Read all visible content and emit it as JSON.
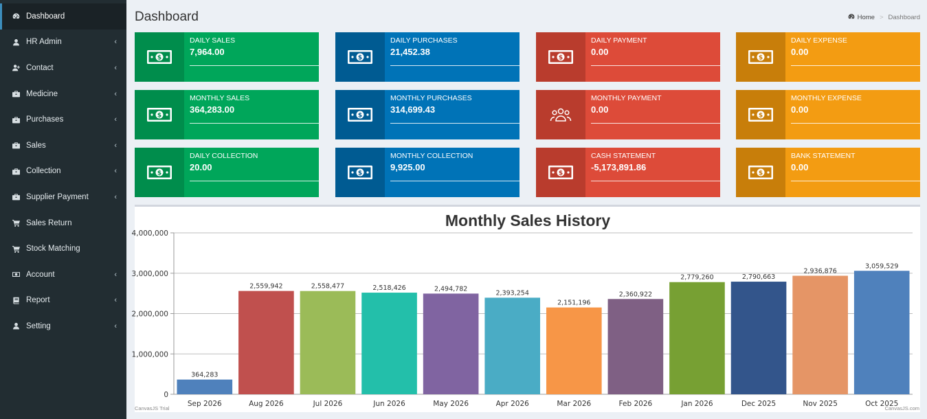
{
  "sidebar": {
    "items": [
      {
        "label": "Dashboard",
        "icon": "dashboard-icon",
        "active": true,
        "chevron": false
      },
      {
        "label": "HR Admin",
        "icon": "user-icon",
        "chevron": true
      },
      {
        "label": "Contact",
        "icon": "user-plus-icon",
        "chevron": true
      },
      {
        "label": "Medicine",
        "icon": "briefcase-icon",
        "chevron": true
      },
      {
        "label": "Purchases",
        "icon": "briefcase-icon",
        "chevron": true
      },
      {
        "label": "Sales",
        "icon": "briefcase-icon",
        "chevron": true
      },
      {
        "label": "Collection",
        "icon": "briefcase-icon",
        "chevron": true
      },
      {
        "label": "Supplier Payment",
        "icon": "briefcase-icon",
        "chevron": true
      },
      {
        "label": "Sales Return",
        "icon": "cart-icon",
        "chevron": false
      },
      {
        "label": "Stock Matching",
        "icon": "cart-icon",
        "chevron": false
      },
      {
        "label": "Account",
        "icon": "money-icon",
        "chevron": true
      },
      {
        "label": "Report",
        "icon": "book-icon",
        "chevron": true
      },
      {
        "label": "Setting",
        "icon": "user-icon",
        "chevron": true
      }
    ]
  },
  "header": {
    "title": "Dashboard",
    "breadcrumb": {
      "home": "Home",
      "current": "Dashboard"
    }
  },
  "boxes": [
    {
      "label": "DAILY SALES",
      "value": "7,964.00",
      "color": "green",
      "icon": "money-bill-icon"
    },
    {
      "label": "DAILY PURCHASES",
      "value": "21,452.38",
      "color": "blue",
      "icon": "money-bill-icon"
    },
    {
      "label": "DAILY PAYMENT",
      "value": "0.00",
      "color": "red",
      "icon": "money-bill-icon"
    },
    {
      "label": "DAILY EXPENSE",
      "value": "0.00",
      "color": "orange",
      "icon": "money-bill-icon"
    },
    {
      "label": "MONTHLY SALES",
      "value": "364,283.00",
      "color": "green",
      "icon": "money-bill-icon"
    },
    {
      "label": "MONTHLY PURCHASES",
      "value": "314,699.43",
      "color": "blue",
      "icon": "money-bill-icon"
    },
    {
      "label": "MONTHLY PAYMENT",
      "value": "0.00",
      "color": "red",
      "icon": "users-icon"
    },
    {
      "label": "MONTHLY EXPENSE",
      "value": "0.00",
      "color": "orange",
      "icon": "money-bill-icon"
    },
    {
      "label": "DAILY COLLECTION",
      "value": "20.00",
      "color": "green",
      "icon": "money-bill-icon"
    },
    {
      "label": "MONTHLY COLLECTION",
      "value": "9,925.00",
      "color": "blue",
      "icon": "money-bill-icon"
    },
    {
      "label": "CASH STATEMENT",
      "value": "-5,173,891.86",
      "color": "red",
      "icon": "money-bill-icon"
    },
    {
      "label": "BANK STATEMENT",
      "value": "0.00",
      "color": "orange",
      "icon": "money-bill-icon"
    }
  ],
  "chart_data": {
    "type": "bar",
    "title": "Monthly Sales History",
    "categories": [
      "Sep 2026",
      "Aug 2026",
      "Jul 2026",
      "Jun 2026",
      "May 2026",
      "Apr 2026",
      "Mar 2026",
      "Feb 2026",
      "Jan 2026",
      "Dec 2025",
      "Nov 2025",
      "Oct 2025"
    ],
    "values": [
      364283,
      2559942,
      2558477,
      2518426,
      2494782,
      2393254,
      2151196,
      2360922,
      2779260,
      2790663,
      2936876,
      3059529
    ],
    "value_labels": [
      "364,283",
      "2,559,942",
      "2,558,477",
      "2,518,426",
      "2,494,782",
      "2,393,254",
      "2,151,196",
      "2,360,922",
      "2,779,260",
      "2,790,663",
      "2,936,876",
      "3,059,529"
    ],
    "colors": [
      "#4f81bc",
      "#c0504e",
      "#9bbb58",
      "#23bfaa",
      "#8064a1",
      "#4aacc5",
      "#f79647",
      "#7f6084",
      "#77a033",
      "#33558b",
      "#e59566",
      "#4f81bc"
    ],
    "yticks": [
      0,
      1000000,
      2000000,
      3000000,
      4000000
    ],
    "ytick_labels": [
      "0",
      "1,000,000",
      "2,000,000",
      "3,000,000",
      "4,000,000"
    ],
    "ylim": [
      0,
      4000000
    ],
    "grid": true,
    "credit_left": "CanvasJS Trial",
    "credit_right": "CanvasJS.com"
  }
}
